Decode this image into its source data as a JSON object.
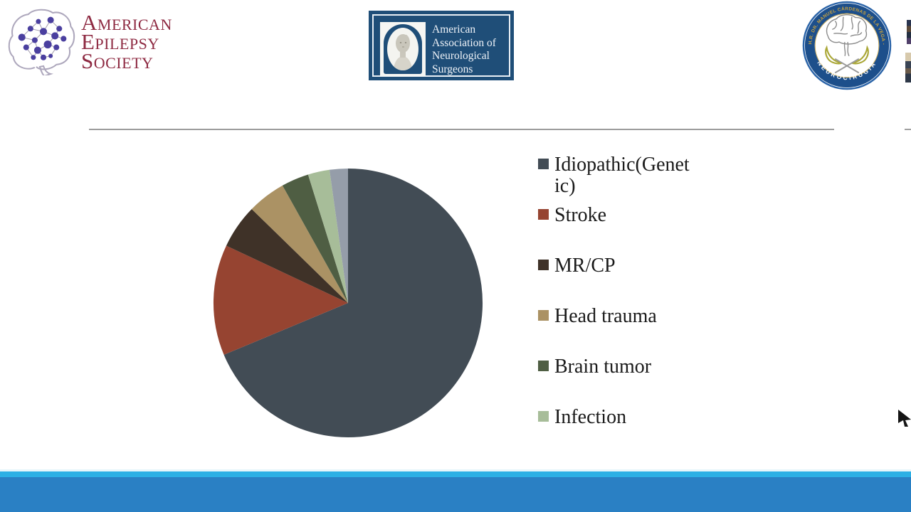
{
  "slide": {
    "background": "#ffffff",
    "divider_color": "#9c9c9c"
  },
  "logos": {
    "aes": {
      "name": "American Epilepsy Society",
      "lines": [
        "American",
        "Epilepsy",
        "Society"
      ],
      "text_color": "#8E2A42",
      "brain_outline_color": "#ADA7BC",
      "node_color": "#4A3F9F"
    },
    "aans": {
      "name": "American Association of Neurological Surgeons",
      "lines": [
        "American",
        "Association of",
        "Neurological",
        "Surgeons"
      ],
      "bg_color": "#1F4E78",
      "text_color": "#EFF3F8"
    },
    "neuro": {
      "top_text": "H.R. DR. MANUEL CÁRDENAS DE LA VEGA - ISSSTE",
      "bottom_text": "NEUROCIRUGÍA",
      "ring_color": "#1D4F8B",
      "top_text_color": "#C9A23E",
      "bottom_text_color": "#FFFFFF",
      "hands_color": "#ABA838"
    }
  },
  "chart_data": {
    "type": "pie",
    "title": "",
    "legend_position": "right",
    "start_angle_deg": 0,
    "direction": "clockwise",
    "units": "percent",
    "series": [
      {
        "name": "Idiopathic(Genetic)",
        "legend_lines": [
          "Idiopathic(Genet",
          "ic)"
        ],
        "value": 68.7,
        "color": "#424C55",
        "in_legend": true
      },
      {
        "name": "Stroke",
        "legend_lines": [
          "Stroke"
        ],
        "value": 13.3,
        "color": "#964431",
        "in_legend": true
      },
      {
        "name": "MR/CP",
        "legend_lines": [
          "MR/CP"
        ],
        "value": 5.3,
        "color": "#3F3228",
        "in_legend": true
      },
      {
        "name": "Head trauma",
        "legend_lines": [
          "Head trauma"
        ],
        "value": 4.6,
        "color": "#AB9264",
        "in_legend": true
      },
      {
        "name": "Brain tumor",
        "legend_lines": [
          "Brain tumor"
        ],
        "value": 3.3,
        "color": "#4F5E43",
        "in_legend": true
      },
      {
        "name": "Infection",
        "legend_lines": [
          "Infection"
        ],
        "value": 2.6,
        "color": "#A7BD99",
        "in_legend": true
      },
      {
        "name": "Other (unlabeled slice)",
        "legend_lines": [],
        "value": 2.2,
        "color": "#959DA9",
        "in_legend": false
      }
    ]
  },
  "footer": {
    "band_color": "#2A80C4",
    "strip_color": "#2CB0E5"
  }
}
